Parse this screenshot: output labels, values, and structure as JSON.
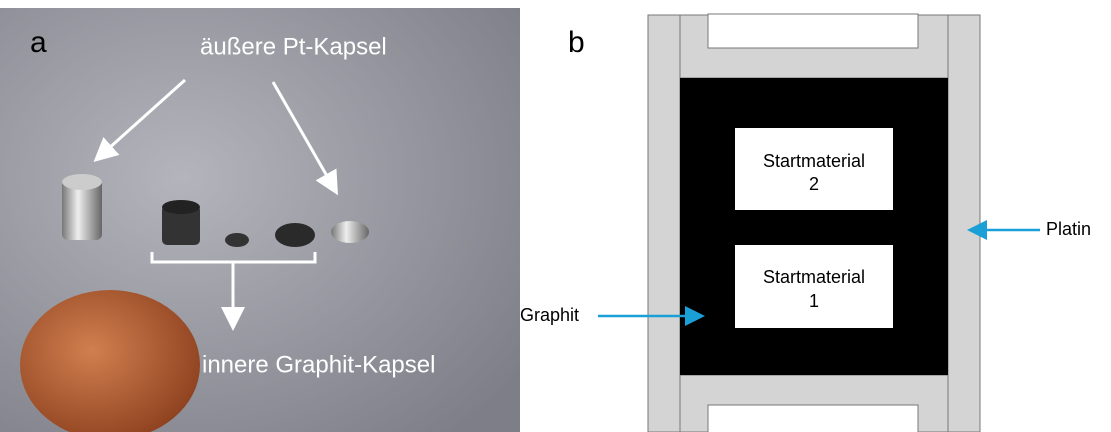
{
  "panel_a": {
    "letter": "a",
    "outer_label": "äußere Pt-Kapsel",
    "inner_label": "innere Graphit-Kapsel"
  },
  "panel_b": {
    "letter": "b",
    "boxes": [
      {
        "lines": [
          "Startmaterial",
          "2"
        ]
      },
      {
        "lines": [
          "Startmaterial",
          "1"
        ]
      }
    ],
    "platin_label": "Platin",
    "graphit_label": "Graphit"
  }
}
